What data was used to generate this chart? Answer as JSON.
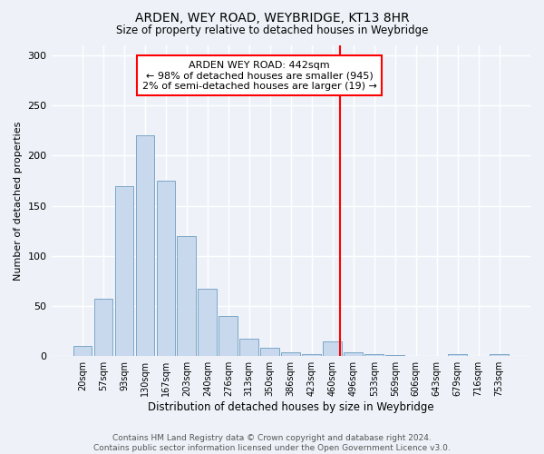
{
  "title": "ARDEN, WEY ROAD, WEYBRIDGE, KT13 8HR",
  "subtitle": "Size of property relative to detached houses in Weybridge",
  "xlabel": "Distribution of detached houses by size in Weybridge",
  "ylabel": "Number of detached properties",
  "bar_labels": [
    "20sqm",
    "57sqm",
    "93sqm",
    "130sqm",
    "167sqm",
    "203sqm",
    "240sqm",
    "276sqm",
    "313sqm",
    "350sqm",
    "386sqm",
    "423sqm",
    "460sqm",
    "496sqm",
    "533sqm",
    "569sqm",
    "606sqm",
    "643sqm",
    "679sqm",
    "716sqm",
    "753sqm"
  ],
  "bar_values": [
    10,
    57,
    170,
    220,
    175,
    120,
    67,
    40,
    17,
    8,
    4,
    2,
    15,
    4,
    2,
    1,
    0,
    0,
    2,
    0,
    2
  ],
  "bar_color": "#c9d9ed",
  "bar_edge_color": "#7ba7c8",
  "ylim": [
    0,
    310
  ],
  "yticks": [
    0,
    50,
    100,
    150,
    200,
    250,
    300
  ],
  "annotation_text": "ARDEN WEY ROAD: 442sqm\n← 98% of detached houses are smaller (945)\n2% of semi-detached houses are larger (19) →",
  "vline_x_index": 12.35,
  "footer_text": "Contains HM Land Registry data © Crown copyright and database right 2024.\nContains public sector information licensed under the Open Government Licence v3.0.",
  "background_color": "#eef2f8",
  "grid_color": "#d8dde8"
}
